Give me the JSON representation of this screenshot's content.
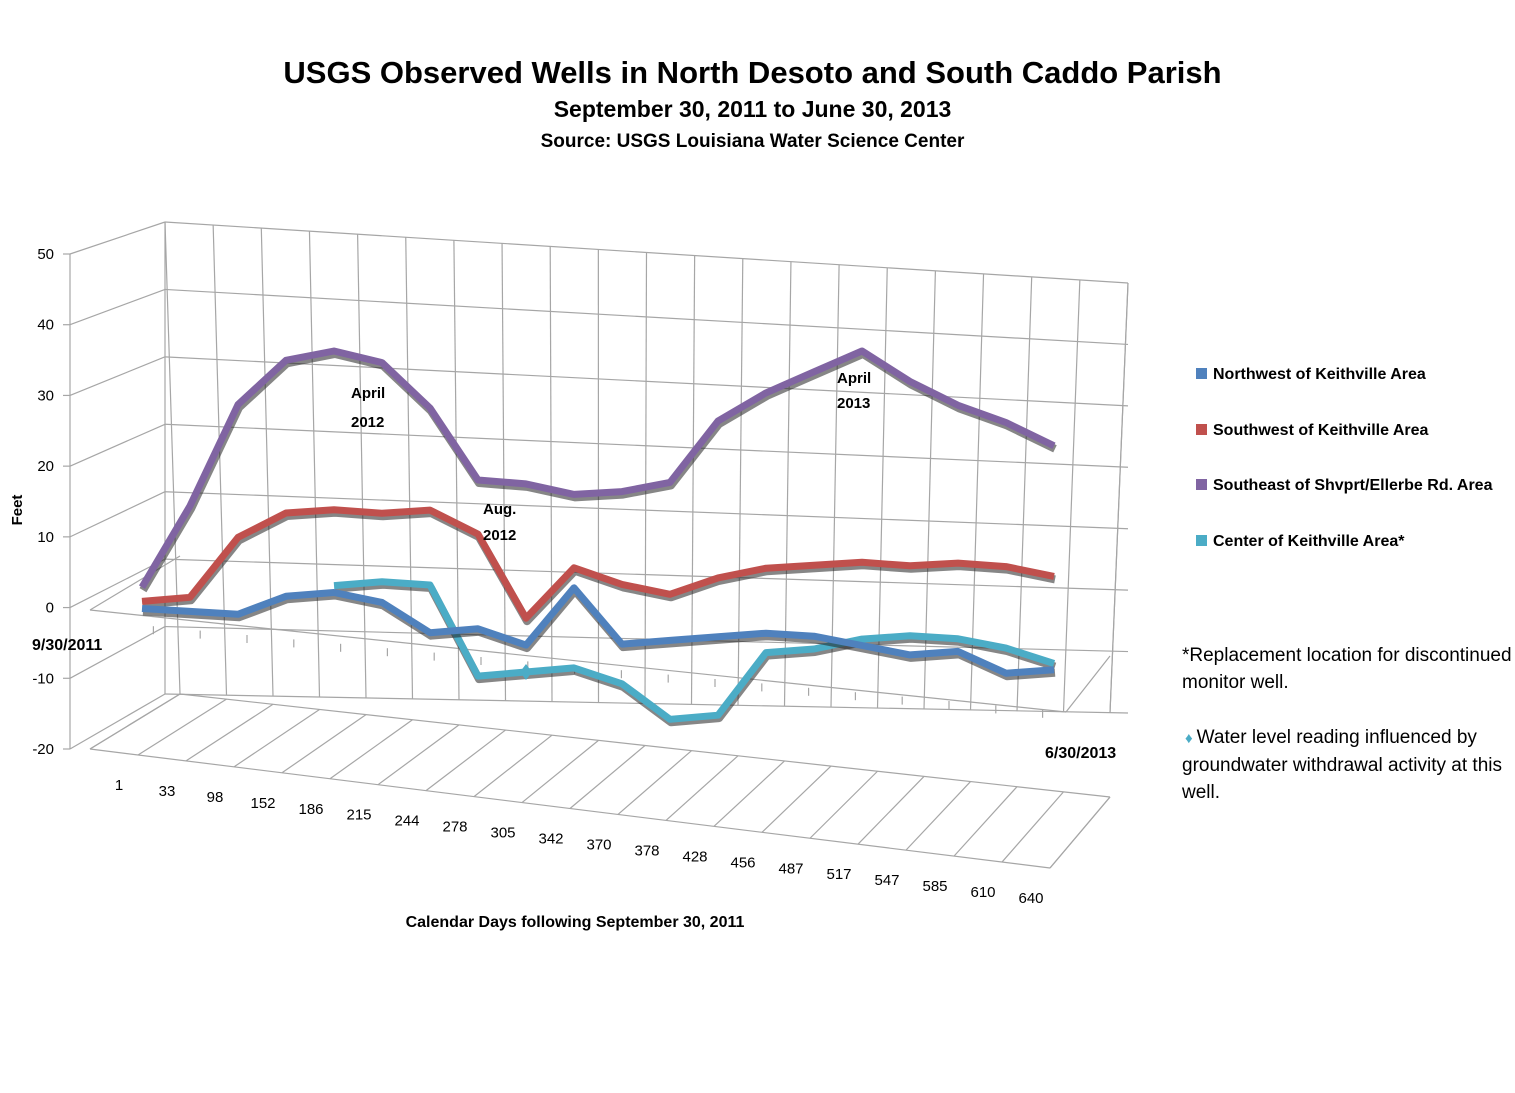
{
  "title": "USGS Observed Wells in North Desoto and South Caddo Parish",
  "subtitle": "September 30, 2011 to June 30, 2013",
  "source": "Source: USGS Louisiana Water Science Center",
  "colors": {
    "northwest": "#4f81bd",
    "southwest": "#c0504d",
    "southeast": "#8064a2",
    "center": "#4bacc6",
    "grid": "#a6a6a6"
  },
  "legend": {
    "items": [
      {
        "label": "Northwest of Keithville Area",
        "color": "#4f81bd"
      },
      {
        "label": "Southwest of Keithville Area",
        "color": "#c0504d"
      },
      {
        "label": "Southeast of Shvprt/Ellerbe Rd. Area",
        "color": "#8064a2"
      },
      {
        "label": "Center of Keithville Area*",
        "color": "#4bacc6"
      }
    ]
  },
  "notes": {
    "replacement": "*Replacement location for discontinued monitor well.",
    "marker_symbol": "♦",
    "influence": "Water level reading influenced by groundwater withdrawal activity at this well."
  },
  "chart_data": {
    "type": "line",
    "style": "3d",
    "title": "USGS Observed Wells in North Desoto and South Caddo Parish",
    "subtitle": "September 30, 2011 to June 30, 2013",
    "xlabel": "Calendar Days following September 30, 2011",
    "ylabel": "Feet",
    "ylim": [
      -20,
      50
    ],
    "yticks": [
      50,
      40,
      30,
      20,
      10,
      0,
      -10,
      -20
    ],
    "grid": true,
    "legend_position": "right",
    "categories": [
      "1",
      "33",
      "98",
      "152",
      "186",
      "215",
      "244",
      "278",
      "305",
      "342",
      "370",
      "378",
      "428",
      "456",
      "487",
      "517",
      "547",
      "585",
      "610",
      "640"
    ],
    "start_label": "9/30/2011",
    "end_label": "6/30/2013",
    "series": [
      {
        "name": "Northwest of Keithville Area",
        "values": [
          0,
          0,
          0,
          3,
          4,
          3,
          -1,
          0,
          -2,
          7,
          -1,
          0,
          1,
          2,
          2,
          1,
          0,
          1,
          -2,
          -1
        ]
      },
      {
        "name": "Southwest of Keithville Area",
        "values": [
          1,
          2,
          11,
          15,
          16,
          16,
          17,
          14,
          2,
          10,
          8,
          7,
          10,
          12,
          13,
          14,
          14,
          15,
          15,
          14
        ]
      },
      {
        "name": "Southeast of Shvprt/Ellerbe Rd. Area",
        "values": [
          3,
          15,
          30,
          37,
          39,
          38,
          32,
          22,
          22,
          21,
          22,
          24,
          34,
          39,
          43,
          47,
          43,
          40,
          38,
          35
        ]
      },
      {
        "name": "Center of Keithville Area*",
        "values": [
          null,
          null,
          null,
          null,
          5,
          6,
          6,
          -7,
          -6,
          -5,
          -7,
          -12,
          -11,
          -1,
          0,
          2,
          3,
          3,
          2,
          0
        ]
      }
    ],
    "influenced_points": [
      {
        "series": "Center of Keithville Area*",
        "category": "305"
      }
    ],
    "annotations": [
      {
        "text": "April 2012"
      },
      {
        "text": "Aug. 2012"
      },
      {
        "text": "April 2013"
      }
    ]
  }
}
